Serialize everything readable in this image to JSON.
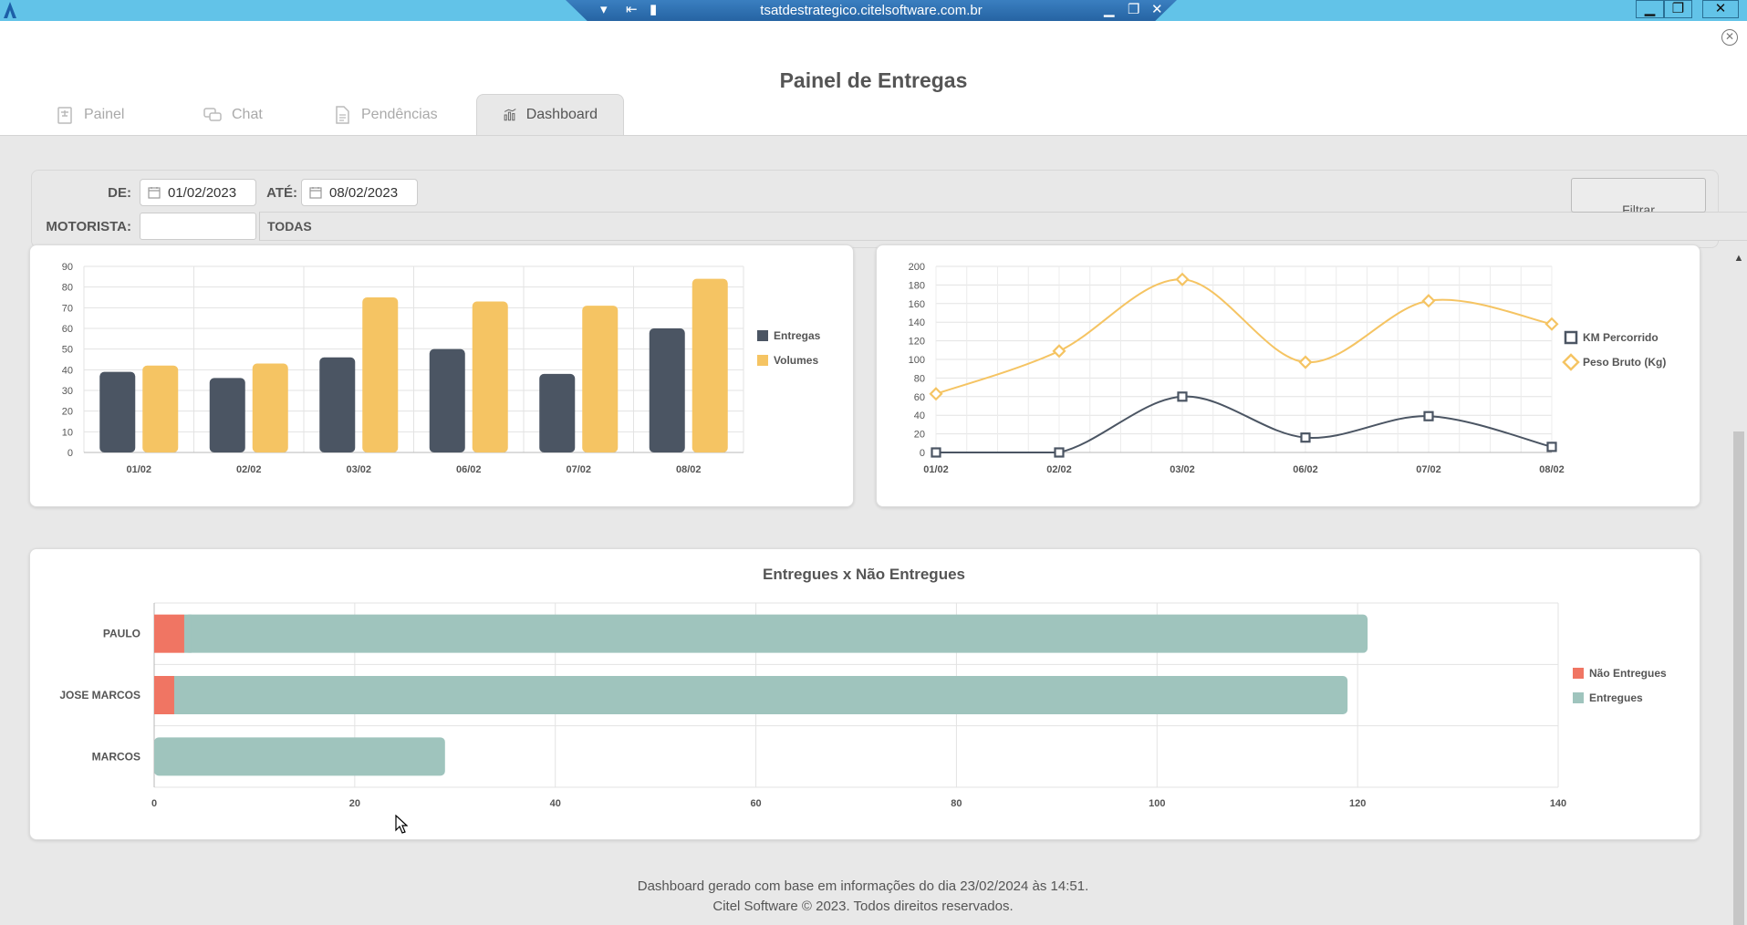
{
  "window": {
    "host": "tsatdestrategico.citelsoftware.com.br"
  },
  "header": {
    "title": "Painel de Entregas",
    "tabs": [
      {
        "label": "Painel",
        "icon": "scale-document-icon"
      },
      {
        "label": "Chat",
        "icon": "chat-bubbles-icon"
      },
      {
        "label": "Pendências",
        "icon": "document-icon"
      },
      {
        "label": "Dashboard",
        "icon": "bar-chart-icon",
        "active": true
      }
    ]
  },
  "filter": {
    "from_label": "DE:",
    "from_value": "01/02/2023",
    "to_label": "ATÉ:",
    "to_value": "08/02/2023",
    "driver_label": "MOTORISTA:",
    "driver_value": "",
    "driver_select": "TODAS",
    "filter_button": "Filtrar"
  },
  "chart_data": [
    {
      "type": "bar",
      "categories": [
        "01/02",
        "02/02",
        "03/02",
        "06/02",
        "07/02",
        "08/02"
      ],
      "series": [
        {
          "name": "Entregas",
          "values": [
            39,
            36,
            46,
            50,
            38,
            60
          ],
          "color": "#4b5563"
        },
        {
          "name": "Volumes",
          "values": [
            42,
            43,
            75,
            73,
            71,
            84
          ],
          "color": "#f5c463"
        }
      ],
      "ylim": [
        0,
        90
      ],
      "yticks": [
        0,
        10,
        20,
        30,
        40,
        50,
        60,
        70,
        80,
        90
      ],
      "legend": "right",
      "grid": true
    },
    {
      "type": "line",
      "categories": [
        "01/02",
        "02/02",
        "03/02",
        "06/02",
        "07/02",
        "08/02"
      ],
      "series": [
        {
          "name": "KM Percorrido",
          "values": [
            0,
            0,
            60,
            16,
            39,
            6
          ],
          "color": "#4b5563",
          "marker": "square"
        },
        {
          "name": "Peso Bruto (Kg)",
          "values": [
            63,
            109,
            186,
            97,
            163,
            138
          ],
          "color": "#f5c463",
          "marker": "diamond"
        }
      ],
      "ylim": [
        0,
        200
      ],
      "yticks": [
        0,
        20,
        40,
        60,
        80,
        100,
        120,
        140,
        160,
        180,
        200
      ],
      "legend": "right",
      "grid": true
    },
    {
      "type": "bar",
      "orientation": "horizontal",
      "stacked": true,
      "title": "Entregues x Não Entregues",
      "categories": [
        "PAULO",
        "JOSE MARCOS",
        "MARCOS"
      ],
      "series": [
        {
          "name": "Não Entregues",
          "values": [
            3,
            2,
            0
          ],
          "color": "#f07563"
        },
        {
          "name": "Entregues",
          "values": [
            118,
            117,
            29
          ],
          "color": "#9fc4bd"
        }
      ],
      "xlim": [
        0,
        140
      ],
      "xticks": [
        0,
        20,
        40,
        60,
        80,
        100,
        120,
        140
      ],
      "legend": "right",
      "grid": true
    }
  ],
  "footer": {
    "line1": "Dashboard gerado com base em informações do dia 23/02/2024 às 14:51.",
    "line2": "Citel Software © 2023. Todos direitos reservados."
  }
}
